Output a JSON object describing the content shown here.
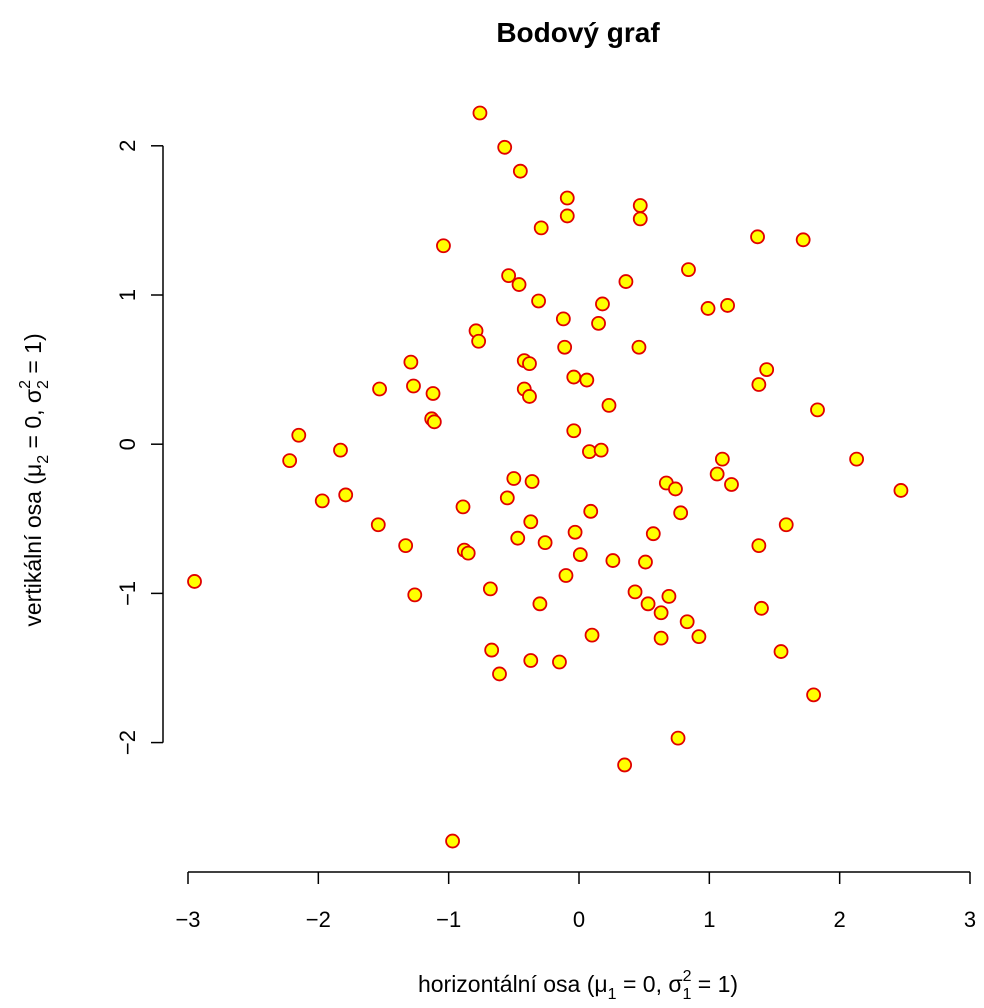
{
  "chart_data": {
    "type": "scatter",
    "title": "Bodový graf",
    "xlabel": {
      "pre": "horizontální osa (",
      "mu": "μ",
      "mu_sub": "1",
      "mid": " = 0, ",
      "sigma": "σ",
      "sigma_sup": "2",
      "sigma_sub": "1",
      "post": " = 1)"
    },
    "ylabel": {
      "pre": "vertikální osa (",
      "mu": "μ",
      "mu_sub": "2",
      "mid": " = 0, ",
      "sigma": "σ",
      "sigma_sup": "2",
      "sigma_sub": "2",
      "post": " = 1)"
    },
    "xlim": [
      -3,
      3
    ],
    "ylim": [
      -2.72,
      2.24
    ],
    "x_ticks": [
      -3,
      -2,
      -1,
      0,
      1,
      2,
      3
    ],
    "x_tick_labels": [
      "−3",
      "−2",
      "−1",
      "0",
      "1",
      "2",
      "3"
    ],
    "y_ticks": [
      -2,
      -1,
      0,
      1,
      2
    ],
    "y_tick_labels": [
      "−2",
      "−1",
      "0",
      "1",
      "2"
    ],
    "marker": {
      "fill": "#ffff00",
      "stroke": "#e00000"
    },
    "points": [
      {
        "x": -0.76,
        "y": 2.22
      },
      {
        "x": -0.57,
        "y": 1.99
      },
      {
        "x": -0.45,
        "y": 1.83
      },
      {
        "x": -0.09,
        "y": 1.65
      },
      {
        "x": 0.47,
        "y": 1.6
      },
      {
        "x": -0.09,
        "y": 1.53
      },
      {
        "x": 0.47,
        "y": 1.51
      },
      {
        "x": -0.29,
        "y": 1.45
      },
      {
        "x": -1.04,
        "y": 1.33
      },
      {
        "x": 1.37,
        "y": 1.39
      },
      {
        "x": 1.72,
        "y": 1.37
      },
      {
        "x": 0.84,
        "y": 1.17
      },
      {
        "x": -0.54,
        "y": 1.13
      },
      {
        "x": -0.46,
        "y": 1.07
      },
      {
        "x": 0.36,
        "y": 1.09
      },
      {
        "x": -0.31,
        "y": 0.96
      },
      {
        "x": 0.18,
        "y": 0.94
      },
      {
        "x": 1.14,
        "y": 0.93
      },
      {
        "x": 0.99,
        "y": 0.91
      },
      {
        "x": -0.12,
        "y": 0.84
      },
      {
        "x": 0.15,
        "y": 0.81
      },
      {
        "x": -0.79,
        "y": 0.76
      },
      {
        "x": -0.77,
        "y": 0.69
      },
      {
        "x": -0.11,
        "y": 0.65
      },
      {
        "x": 0.46,
        "y": 0.65
      },
      {
        "x": -0.42,
        "y": 0.56
      },
      {
        "x": -0.38,
        "y": 0.54
      },
      {
        "x": -1.29,
        "y": 0.55
      },
      {
        "x": 1.44,
        "y": 0.5
      },
      {
        "x": -0.04,
        "y": 0.45
      },
      {
        "x": 0.06,
        "y": 0.43
      },
      {
        "x": 1.38,
        "y": 0.4
      },
      {
        "x": -1.53,
        "y": 0.37
      },
      {
        "x": -1.27,
        "y": 0.39
      },
      {
        "x": -0.42,
        "y": 0.37
      },
      {
        "x": -0.38,
        "y": 0.32
      },
      {
        "x": -1.12,
        "y": 0.34
      },
      {
        "x": 0.23,
        "y": 0.26
      },
      {
        "x": 1.83,
        "y": 0.23
      },
      {
        "x": -1.13,
        "y": 0.17
      },
      {
        "x": -1.11,
        "y": 0.15
      },
      {
        "x": -0.04,
        "y": 0.09
      },
      {
        "x": -2.15,
        "y": 0.06
      },
      {
        "x": -1.83,
        "y": -0.04
      },
      {
        "x": 0.08,
        "y": -0.05
      },
      {
        "x": 0.17,
        "y": -0.04
      },
      {
        "x": -2.22,
        "y": -0.11
      },
      {
        "x": 1.1,
        "y": -0.1
      },
      {
        "x": 2.13,
        "y": -0.1
      },
      {
        "x": 1.06,
        "y": -0.2
      },
      {
        "x": -0.5,
        "y": -0.23
      },
      {
        "x": -0.36,
        "y": -0.25
      },
      {
        "x": 0.67,
        "y": -0.26
      },
      {
        "x": 1.17,
        "y": -0.27
      },
      {
        "x": 0.74,
        "y": -0.3
      },
      {
        "x": 2.47,
        "y": -0.31
      },
      {
        "x": -1.79,
        "y": -0.34
      },
      {
        "x": -0.55,
        "y": -0.36
      },
      {
        "x": -1.97,
        "y": -0.38
      },
      {
        "x": -0.89,
        "y": -0.42
      },
      {
        "x": 0.09,
        "y": -0.45
      },
      {
        "x": 0.78,
        "y": -0.46
      },
      {
        "x": -0.37,
        "y": -0.52
      },
      {
        "x": -1.54,
        "y": -0.54
      },
      {
        "x": 1.59,
        "y": -0.54
      },
      {
        "x": -0.03,
        "y": -0.59
      },
      {
        "x": 0.57,
        "y": -0.6
      },
      {
        "x": -0.47,
        "y": -0.63
      },
      {
        "x": -0.26,
        "y": -0.66
      },
      {
        "x": -1.33,
        "y": -0.68
      },
      {
        "x": 1.38,
        "y": -0.68
      },
      {
        "x": -0.88,
        "y": -0.71
      },
      {
        "x": -0.85,
        "y": -0.73
      },
      {
        "x": 0.01,
        "y": -0.74
      },
      {
        "x": 0.26,
        "y": -0.78
      },
      {
        "x": 0.51,
        "y": -0.79
      },
      {
        "x": -0.1,
        "y": -0.88
      },
      {
        "x": -2.95,
        "y": -0.92
      },
      {
        "x": -0.68,
        "y": -0.97
      },
      {
        "x": 0.43,
        "y": -0.99
      },
      {
        "x": 0.69,
        "y": -1.02
      },
      {
        "x": -1.26,
        "y": -1.01
      },
      {
        "x": 0.53,
        "y": -1.07
      },
      {
        "x": -0.3,
        "y": -1.07
      },
      {
        "x": 1.4,
        "y": -1.1
      },
      {
        "x": 0.83,
        "y": -1.19
      },
      {
        "x": 0.1,
        "y": -1.28
      },
      {
        "x": 0.63,
        "y": -1.3
      },
      {
        "x": 0.92,
        "y": -1.29
      },
      {
        "x": -0.67,
        "y": -1.38
      },
      {
        "x": 1.55,
        "y": -1.39
      },
      {
        "x": -0.37,
        "y": -1.45
      },
      {
        "x": -0.15,
        "y": -1.46
      },
      {
        "x": -0.61,
        "y": -1.54
      },
      {
        "x": 1.8,
        "y": -1.68
      },
      {
        "x": 0.76,
        "y": -1.97
      },
      {
        "x": 0.35,
        "y": -2.15
      },
      {
        "x": -0.97,
        "y": -2.66
      },
      {
        "x": 0.63,
        "y": -1.13
      }
    ]
  }
}
